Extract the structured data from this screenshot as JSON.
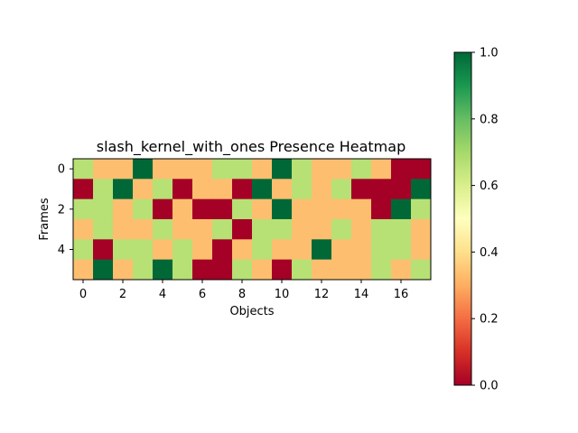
{
  "chart_data": {
    "type": "heatmap",
    "title": "slash_kernel_with_ones Presence Heatmap",
    "xlabel": "Objects",
    "ylabel": "Frames",
    "x_ticks": [
      "0",
      "2",
      "4",
      "6",
      "8",
      "10",
      "12",
      "14",
      "16"
    ],
    "y_ticks": [
      "0",
      "2",
      "4"
    ],
    "colorbar_ticks": [
      "0.0",
      "0.2",
      "0.4",
      "0.6",
      "0.8",
      "1.0"
    ],
    "colormap": "RdYlGn",
    "vmin": 0.0,
    "vmax": 1.0,
    "n_rows": 6,
    "n_cols": 18,
    "values": [
      [
        0.667,
        0.333,
        0.333,
        1.0,
        0.333,
        0.333,
        0.333,
        0.667,
        0.667,
        0.333,
        1.0,
        0.667,
        0.333,
        0.333,
        0.667,
        0.333,
        0.0,
        0.0
      ],
      [
        0.0,
        0.667,
        1.0,
        0.333,
        0.667,
        0.0,
        0.333,
        0.333,
        0.0,
        1.0,
        0.333,
        0.667,
        0.333,
        0.667,
        0.0,
        0.0,
        0.0,
        1.0
      ],
      [
        0.667,
        0.667,
        0.333,
        0.667,
        0.0,
        0.333,
        0.0,
        0.0,
        0.667,
        0.333,
        1.0,
        0.333,
        0.333,
        0.333,
        0.333,
        0.0,
        1.0,
        0.667
      ],
      [
        0.333,
        0.667,
        0.333,
        0.333,
        0.667,
        0.333,
        0.333,
        0.667,
        0.0,
        0.667,
        0.667,
        0.333,
        0.333,
        0.667,
        0.333,
        0.667,
        0.667,
        0.333
      ],
      [
        0.667,
        0.0,
        0.667,
        0.667,
        0.333,
        0.667,
        0.333,
        0.0,
        0.333,
        0.667,
        0.333,
        0.333,
        1.0,
        0.333,
        0.333,
        0.667,
        0.667,
        0.333
      ],
      [
        0.333,
        1.0,
        0.333,
        0.667,
        1.0,
        0.667,
        0.0,
        0.0,
        0.667,
        0.333,
        0.0,
        0.667,
        0.333,
        0.333,
        0.333,
        0.667,
        0.333,
        0.667
      ]
    ]
  }
}
